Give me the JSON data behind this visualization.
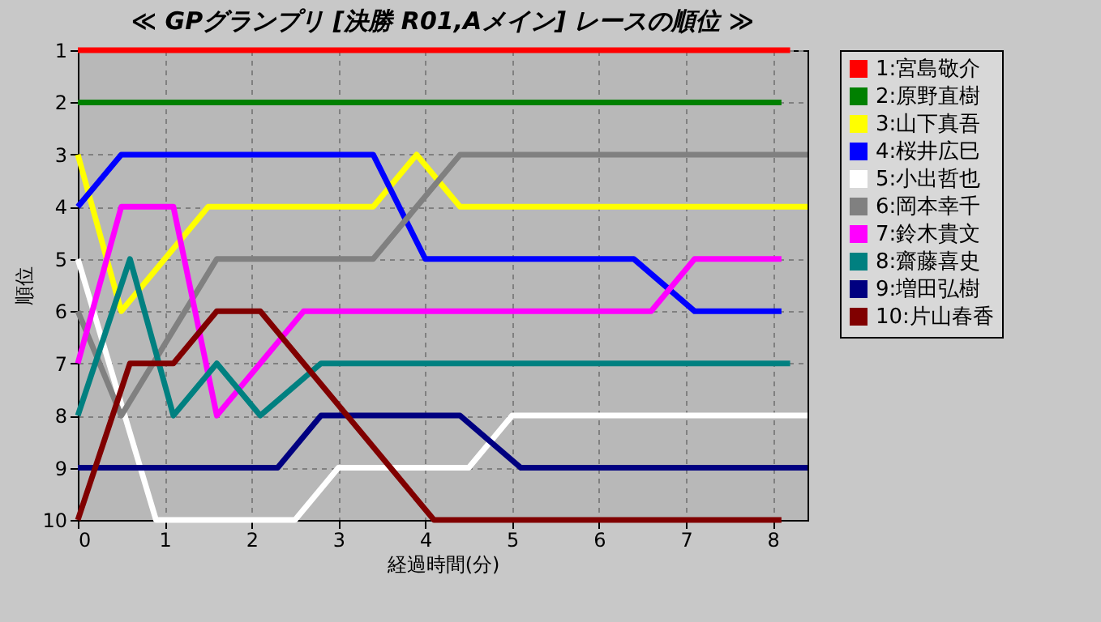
{
  "chart_data": {
    "type": "line",
    "title": "≪ GPグランプリ [決勝 R01,Aメイン] レースの順位 ≫",
    "xlabel": "経過時間(分)",
    "ylabel": "順位",
    "xlim": [
      0,
      8.4
    ],
    "xticks": [
      0,
      1,
      2,
      3,
      4,
      5,
      6,
      7,
      8
    ],
    "ylim": [
      10,
      1
    ],
    "yticks": [
      1,
      2,
      3,
      4,
      5,
      6,
      7,
      8,
      9,
      10
    ],
    "grid": true,
    "legend": "right",
    "series": [
      {
        "name": "1:宮島敬介",
        "color": "#ff0000",
        "x": [
          0,
          8.2
        ],
        "values": [
          1,
          1
        ]
      },
      {
        "name": "2:原野直樹",
        "color": "#008000",
        "x": [
          0,
          8.1
        ],
        "values": [
          2,
          2
        ]
      },
      {
        "name": "3:山下真吾",
        "color": "#ffff00",
        "x": [
          0,
          0.5,
          1.5,
          3.4,
          3.9,
          4.4,
          8.4
        ],
        "values": [
          3,
          6,
          4,
          4,
          3,
          4,
          4
        ]
      },
      {
        "name": "4:桜井広巳",
        "color": "#0000ff",
        "x": [
          0,
          0.5,
          3.4,
          4,
          6.4,
          7.1,
          8.1
        ],
        "values": [
          4,
          3,
          3,
          5,
          5,
          6,
          6
        ]
      },
      {
        "name": "5:小出哲也",
        "color": "#ffffff",
        "x": [
          0,
          0.9,
          2.5,
          3,
          4.5,
          5,
          8.4
        ],
        "values": [
          5,
          10,
          10,
          9,
          9,
          8,
          8
        ]
      },
      {
        "name": "6:岡本幸千",
        "color": "#808080",
        "x": [
          0,
          0.5,
          1.6,
          3.4,
          4.4,
          8.4
        ],
        "values": [
          6,
          8,
          5,
          5,
          3,
          3
        ]
      },
      {
        "name": "7:鈴木貴文",
        "color": "#ff00ff",
        "x": [
          0,
          0.5,
          1.1,
          1.6,
          2.6,
          6.6,
          7.1,
          8.1
        ],
        "values": [
          7,
          4,
          4,
          8,
          6,
          6,
          5,
          5
        ]
      },
      {
        "name": "8:齋藤喜史",
        "color": "#008080",
        "x": [
          0,
          0.6,
          1.1,
          1.6,
          2.1,
          2.8,
          8.2
        ],
        "values": [
          8,
          5,
          8,
          7,
          8,
          7,
          7
        ]
      },
      {
        "name": "9:増田弘樹",
        "color": "#000080",
        "x": [
          0,
          2.3,
          2.8,
          4.4,
          5.1,
          8.4
        ],
        "values": [
          9,
          9,
          8,
          8,
          9,
          9
        ]
      },
      {
        "name": "10:片山春香",
        "color": "#800000",
        "x": [
          0,
          0.6,
          1.1,
          1.6,
          2.1,
          4.1,
          8.1
        ],
        "values": [
          10,
          7,
          7,
          6,
          6,
          10,
          10
        ]
      }
    ]
  }
}
